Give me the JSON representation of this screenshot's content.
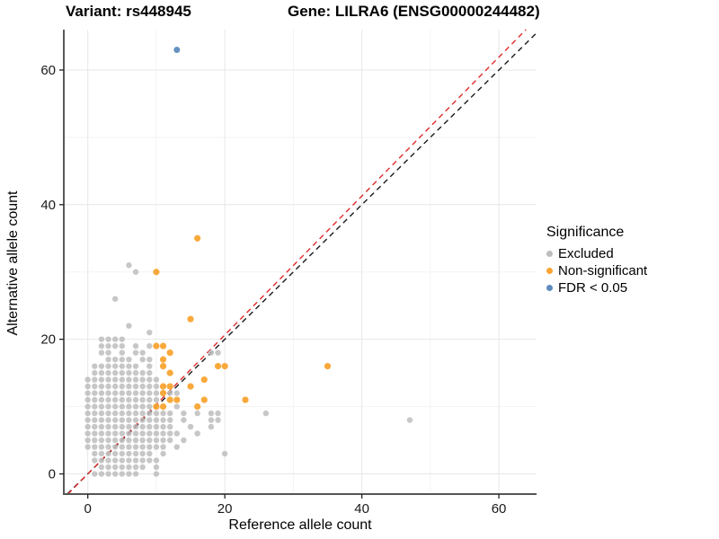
{
  "titles": {
    "variant": "Variant: rs448945",
    "gene": "Gene: LILRA6 (ENSG00000244482)"
  },
  "axes": {
    "x": {
      "label": "Reference allele count",
      "ticks": [
        0,
        20,
        40,
        60
      ],
      "minor_ticks": [
        10,
        30,
        50
      ],
      "range": [
        -3.5,
        65.5
      ]
    },
    "y": {
      "label": "Alternative allele count",
      "ticks": [
        0,
        20,
        40,
        60
      ],
      "minor_ticks": [
        10,
        30,
        50
      ],
      "range": [
        -3,
        66
      ]
    }
  },
  "legend": {
    "title": "Significance",
    "items": [
      {
        "label": "Excluded",
        "color": "#bdbdbd"
      },
      {
        "label": "Non-significant",
        "color": "#f9a432"
      },
      {
        "label": "FDR < 0.05",
        "color": "#5e8bbe"
      }
    ]
  },
  "chart_data": {
    "type": "scatter",
    "title": "Variant: rs448945 | Gene: LILRA6 (ENSG00000244482)",
    "xlabel": "Reference allele count",
    "ylabel": "Alternative allele count",
    "xlim": [
      -3.5,
      65.5
    ],
    "ylim": [
      -3,
      66
    ],
    "grid": true,
    "legend_position": "right",
    "reference_lines": [
      {
        "name": "identity",
        "slope": 1.0,
        "intercept": 0,
        "color": "#1a1a1a",
        "style": "dashed"
      },
      {
        "name": "fit",
        "slope": 1.032,
        "intercept": 0,
        "color": "#e02a2a",
        "style": "dashed"
      }
    ],
    "series": [
      {
        "name": "Excluded",
        "color": "#bdbdbd",
        "opacity": 0.85,
        "radius": 3.2,
        "points": [
          [
            1,
            0
          ],
          [
            2,
            0
          ],
          [
            3,
            0
          ],
          [
            4,
            0
          ],
          [
            5,
            0
          ],
          [
            6,
            0
          ],
          [
            7,
            0
          ],
          [
            10,
            0
          ],
          [
            2,
            1
          ],
          [
            3,
            1
          ],
          [
            4,
            1
          ],
          [
            5,
            1
          ],
          [
            6,
            1
          ],
          [
            7,
            1
          ],
          [
            8,
            1
          ],
          [
            10,
            1
          ],
          [
            1,
            2
          ],
          [
            2,
            2
          ],
          [
            3,
            2
          ],
          [
            4,
            2
          ],
          [
            5,
            2
          ],
          [
            6,
            2
          ],
          [
            7,
            2
          ],
          [
            8,
            2
          ],
          [
            9,
            2
          ],
          [
            10,
            2
          ],
          [
            1,
            3
          ],
          [
            2,
            3
          ],
          [
            3,
            3
          ],
          [
            4,
            3
          ],
          [
            5,
            3
          ],
          [
            6,
            3
          ],
          [
            7,
            3
          ],
          [
            8,
            3
          ],
          [
            9,
            3
          ],
          [
            11,
            3
          ],
          [
            20,
            3
          ],
          [
            0,
            4
          ],
          [
            1,
            4
          ],
          [
            2,
            4
          ],
          [
            3,
            4
          ],
          [
            4,
            4
          ],
          [
            5,
            4
          ],
          [
            6,
            4
          ],
          [
            7,
            4
          ],
          [
            8,
            4
          ],
          [
            9,
            4
          ],
          [
            10,
            4
          ],
          [
            11,
            4
          ],
          [
            13,
            4
          ],
          [
            0,
            5
          ],
          [
            1,
            5
          ],
          [
            2,
            5
          ],
          [
            3,
            5
          ],
          [
            4,
            5
          ],
          [
            5,
            5
          ],
          [
            6,
            5
          ],
          [
            7,
            5
          ],
          [
            8,
            5
          ],
          [
            9,
            5
          ],
          [
            10,
            5
          ],
          [
            11,
            5
          ],
          [
            12,
            5
          ],
          [
            14,
            5
          ],
          [
            0,
            6
          ],
          [
            1,
            6
          ],
          [
            2,
            6
          ],
          [
            3,
            6
          ],
          [
            4,
            6
          ],
          [
            5,
            6
          ],
          [
            6,
            6
          ],
          [
            7,
            6
          ],
          [
            8,
            6
          ],
          [
            9,
            6
          ],
          [
            10,
            6
          ],
          [
            11,
            6
          ],
          [
            12,
            6
          ],
          [
            13,
            6
          ],
          [
            16,
            6
          ],
          [
            0,
            7
          ],
          [
            1,
            7
          ],
          [
            2,
            7
          ],
          [
            3,
            7
          ],
          [
            4,
            7
          ],
          [
            5,
            7
          ],
          [
            6,
            7
          ],
          [
            7,
            7
          ],
          [
            8,
            7
          ],
          [
            9,
            7
          ],
          [
            10,
            7
          ],
          [
            11,
            7
          ],
          [
            12,
            7
          ],
          [
            15,
            7
          ],
          [
            18,
            7
          ],
          [
            0,
            8
          ],
          [
            1,
            8
          ],
          [
            2,
            8
          ],
          [
            3,
            8
          ],
          [
            4,
            8
          ],
          [
            5,
            8
          ],
          [
            6,
            8
          ],
          [
            7,
            8
          ],
          [
            8,
            8
          ],
          [
            9,
            8
          ],
          [
            10,
            8
          ],
          [
            11,
            8
          ],
          [
            12,
            8
          ],
          [
            14,
            8
          ],
          [
            18,
            8
          ],
          [
            19,
            8
          ],
          [
            0,
            9
          ],
          [
            1,
            9
          ],
          [
            2,
            9
          ],
          [
            3,
            9
          ],
          [
            4,
            9
          ],
          [
            5,
            9
          ],
          [
            6,
            9
          ],
          [
            7,
            9
          ],
          [
            8,
            9
          ],
          [
            9,
            9
          ],
          [
            10,
            9
          ],
          [
            11,
            9
          ],
          [
            12,
            9
          ],
          [
            14,
            9
          ],
          [
            16,
            9
          ],
          [
            18,
            9
          ],
          [
            19,
            9
          ],
          [
            0,
            10
          ],
          [
            1,
            10
          ],
          [
            2,
            10
          ],
          [
            3,
            10
          ],
          [
            4,
            10
          ],
          [
            5,
            10
          ],
          [
            6,
            10
          ],
          [
            7,
            10
          ],
          [
            8,
            10
          ],
          [
            9,
            10
          ],
          [
            13,
            10
          ],
          [
            0,
            11
          ],
          [
            1,
            11
          ],
          [
            2,
            11
          ],
          [
            3,
            11
          ],
          [
            4,
            11
          ],
          [
            5,
            11
          ],
          [
            6,
            11
          ],
          [
            7,
            11
          ],
          [
            8,
            11
          ],
          [
            9,
            11
          ],
          [
            10,
            11
          ],
          [
            0,
            12
          ],
          [
            1,
            12
          ],
          [
            2,
            12
          ],
          [
            3,
            12
          ],
          [
            4,
            12
          ],
          [
            5,
            12
          ],
          [
            6,
            12
          ],
          [
            7,
            12
          ],
          [
            8,
            12
          ],
          [
            9,
            12
          ],
          [
            10,
            12
          ],
          [
            12,
            12
          ],
          [
            13,
            12
          ],
          [
            0,
            13
          ],
          [
            1,
            13
          ],
          [
            2,
            13
          ],
          [
            3,
            13
          ],
          [
            4,
            13
          ],
          [
            5,
            13
          ],
          [
            6,
            13
          ],
          [
            7,
            13
          ],
          [
            8,
            13
          ],
          [
            9,
            13
          ],
          [
            10,
            13
          ],
          [
            0,
            14
          ],
          [
            1,
            14
          ],
          [
            2,
            14
          ],
          [
            3,
            14
          ],
          [
            4,
            14
          ],
          [
            5,
            14
          ],
          [
            6,
            14
          ],
          [
            7,
            14
          ],
          [
            8,
            14
          ],
          [
            9,
            14
          ],
          [
            10,
            14
          ],
          [
            1,
            15
          ],
          [
            2,
            15
          ],
          [
            3,
            15
          ],
          [
            4,
            15
          ],
          [
            5,
            15
          ],
          [
            6,
            15
          ],
          [
            7,
            15
          ],
          [
            8,
            15
          ],
          [
            9,
            15
          ],
          [
            1,
            16
          ],
          [
            2,
            16
          ],
          [
            3,
            16
          ],
          [
            4,
            16
          ],
          [
            5,
            16
          ],
          [
            6,
            16
          ],
          [
            7,
            16
          ],
          [
            9,
            16
          ],
          [
            3,
            17
          ],
          [
            4,
            17
          ],
          [
            5,
            17
          ],
          [
            6,
            17
          ],
          [
            8,
            17
          ],
          [
            9,
            17
          ],
          [
            2,
            18
          ],
          [
            3,
            18
          ],
          [
            5,
            18
          ],
          [
            7,
            18
          ],
          [
            8,
            18
          ],
          [
            18,
            18
          ],
          [
            19,
            18
          ],
          [
            2,
            19
          ],
          [
            3,
            19
          ],
          [
            4,
            19
          ],
          [
            5,
            19
          ],
          [
            7,
            19
          ],
          [
            9,
            19
          ],
          [
            2,
            20
          ],
          [
            3,
            20
          ],
          [
            4,
            20
          ],
          [
            5,
            20
          ],
          [
            9,
            21
          ],
          [
            6,
            22
          ],
          [
            4,
            26
          ],
          [
            7,
            30
          ],
          [
            6,
            31
          ],
          [
            26,
            9
          ],
          [
            47,
            8
          ]
        ]
      },
      {
        "name": "Non-significant",
        "color": "#f9a432",
        "opacity": 0.95,
        "radius": 3.6,
        "points": [
          [
            10,
            10
          ],
          [
            11,
            10
          ],
          [
            16,
            10
          ],
          [
            12,
            11
          ],
          [
            13,
            11
          ],
          [
            17,
            11
          ],
          [
            23,
            11
          ],
          [
            11,
            12
          ],
          [
            11,
            13
          ],
          [
            12,
            13
          ],
          [
            15,
            13
          ],
          [
            17,
            14
          ],
          [
            12,
            15
          ],
          [
            11,
            16
          ],
          [
            19,
            16
          ],
          [
            20,
            16
          ],
          [
            35,
            16
          ],
          [
            11,
            17
          ],
          [
            12,
            18
          ],
          [
            10,
            19
          ],
          [
            11,
            19
          ],
          [
            15,
            23
          ],
          [
            10,
            30
          ],
          [
            16,
            35
          ]
        ]
      },
      {
        "name": "FDR < 0.05",
        "color": "#5e8bbe",
        "opacity": 0.95,
        "radius": 3.5,
        "points": [
          [
            13,
            63
          ]
        ]
      }
    ]
  }
}
